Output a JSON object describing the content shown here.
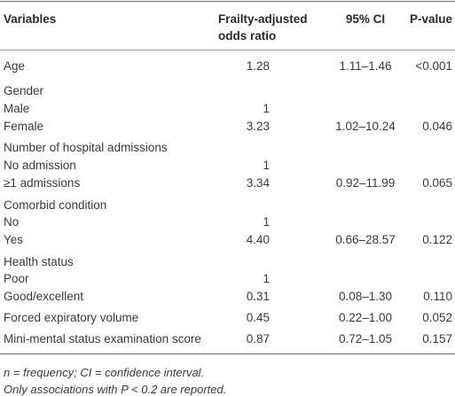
{
  "table": {
    "header": [
      "Variables",
      "Frailty-adjusted odds ratio",
      "95% CI",
      "P-value"
    ],
    "rows": [
      {
        "variable": "Age",
        "odds_ratio": "1.28",
        "ci": "1.11–1.46",
        "p_value": "<0.001"
      },
      {
        "variable": "Gender"
      },
      {
        "variable": "Male",
        "odds_ratio": "1"
      },
      {
        "variable": "Female",
        "odds_ratio": "3.23",
        "ci": "1.02–10.24",
        "p_value": "0.046"
      },
      {
        "variable": "Number of hospital admissions"
      },
      {
        "variable": "No admission",
        "odds_ratio": "1"
      },
      {
        "variable": "≥1 admissions",
        "odds_ratio": "3.34",
        "ci": "0.92–11.99",
        "p_value": "0.065"
      },
      {
        "variable": "Comorbid condition"
      },
      {
        "variable": "No",
        "odds_ratio": "1"
      },
      {
        "variable": "Yes",
        "odds_ratio": "4.40",
        "ci": "0.66–28.57",
        "p_value": "0.122"
      },
      {
        "variable": "Health status"
      },
      {
        "variable": "Poor",
        "odds_ratio": "1"
      },
      {
        "variable": "Good/excellent",
        "odds_ratio": "0.31",
        "ci": "0.08–1.30",
        "p_value": "0.110"
      },
      {
        "variable": "Forced expiratory volume",
        "odds_ratio": "0.45",
        "ci": "0.22–1.00",
        "p_value": "0.052"
      },
      {
        "variable": "Mini-mental status examination score",
        "odds_ratio": "0.87",
        "ci": "0.72–1.05",
        "p_value": "0.157"
      }
    ],
    "footnotes": [
      "n = frequency; CI = confidence interval.",
      "Only associations with P < 0.2 are reported."
    ]
  }
}
